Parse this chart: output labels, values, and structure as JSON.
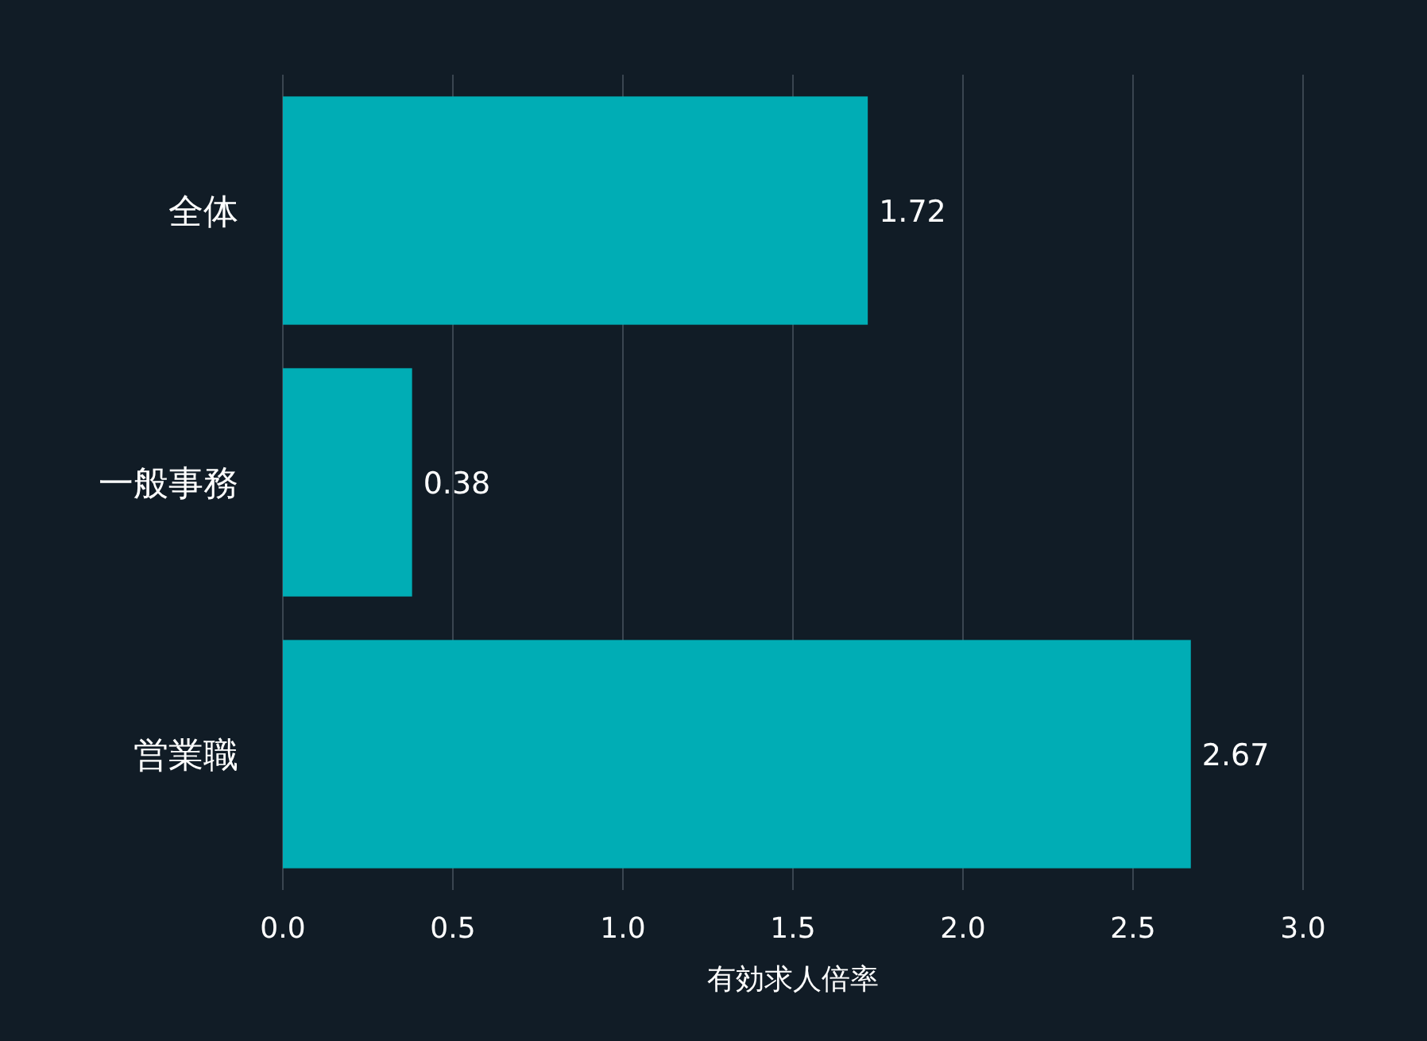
{
  "chart_data": {
    "type": "bar",
    "orientation": "horizontal",
    "xlabel": "有効求人倍率",
    "categories": [
      "全体",
      "一般事務",
      "営業職"
    ],
    "values": [
      1.72,
      0.38,
      2.67
    ],
    "color": "#00adb5",
    "data_labels": true,
    "grid": "x",
    "xlim": [
      0,
      3.0
    ],
    "xticks": [
      {
        "value": 0,
        "label": "0.0"
      },
      {
        "value": 0.5,
        "label": "0.5"
      },
      {
        "value": 1,
        "label": "1.0"
      },
      {
        "value": 1.5,
        "label": "1.5"
      },
      {
        "value": 2,
        "label": "2.0"
      },
      {
        "value": 2.5,
        "label": "2.5"
      },
      {
        "value": 3,
        "label": "3.0"
      }
    ]
  }
}
